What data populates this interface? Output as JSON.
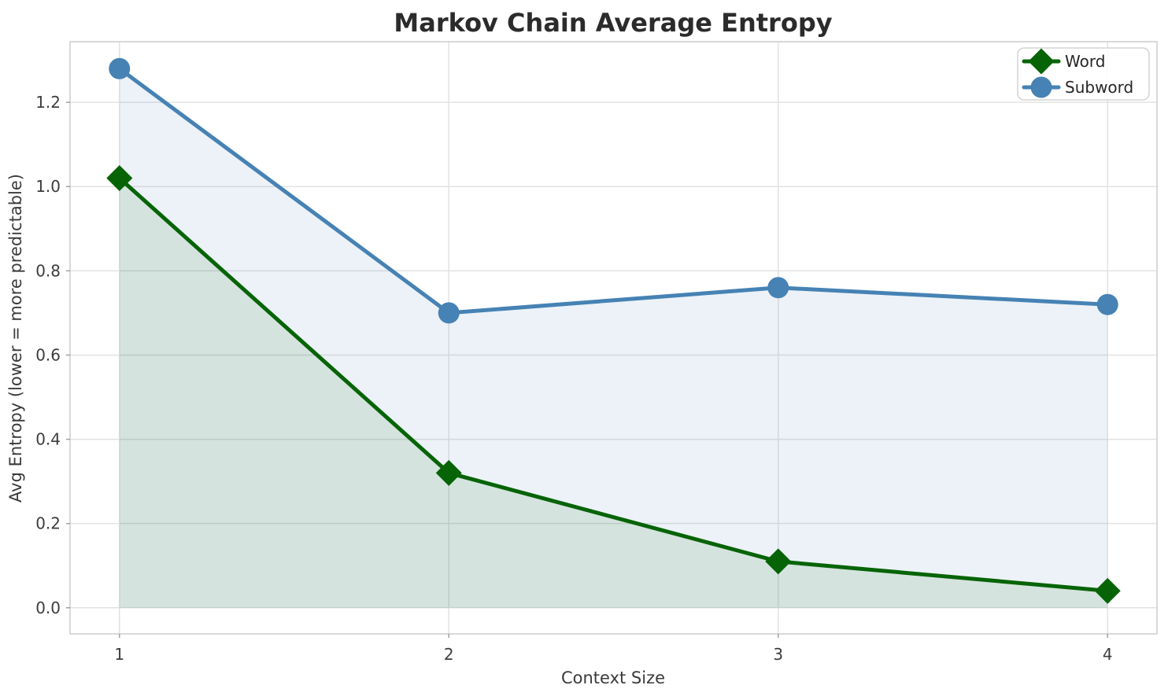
{
  "chart_data": {
    "type": "line",
    "title": "Markov Chain Average Entropy",
    "xlabel": "Context Size",
    "ylabel": "Avg Entropy (lower = more predictable)",
    "x": [
      1,
      2,
      3,
      4
    ],
    "series": [
      {
        "name": "Word",
        "values": [
          1.02,
          0.32,
          0.11,
          0.04
        ],
        "color": "#066406",
        "marker": "diamond",
        "fill_opacity": 0.1
      },
      {
        "name": "Subword",
        "values": [
          1.28,
          0.7,
          0.76,
          0.72
        ],
        "color": "#4682B4",
        "marker": "circle",
        "fill_opacity": 0.1
      }
    ],
    "fill_baseline": 0,
    "xticks": {
      "values": [
        1,
        2,
        3,
        4
      ],
      "labels": [
        "1",
        "2",
        "3",
        "4"
      ]
    },
    "yticks": {
      "values": [
        0.0,
        0.2,
        0.4,
        0.6,
        0.8,
        1.0,
        1.2
      ],
      "labels": [
        "0.0",
        "0.2",
        "0.4",
        "0.6",
        "0.8",
        "1.0",
        "1.2"
      ]
    },
    "xlim": [
      0.85,
      4.15
    ],
    "ylim": [
      -0.062,
      1.344
    ],
    "grid": true,
    "legend_position": "upper right",
    "legend": [
      "Word",
      "Subword"
    ]
  },
  "style": {
    "grid_color": "#e2e2e2",
    "spine_color": "#c9c9c9",
    "tick_color": "#9a9a9a",
    "tick_label_color": "#3d3d3d",
    "axis_label_color": "#3a3a3a",
    "title_color": "#2b2b2b",
    "legend_border_color": "#cccccc",
    "legend_text_color": "#262626"
  }
}
